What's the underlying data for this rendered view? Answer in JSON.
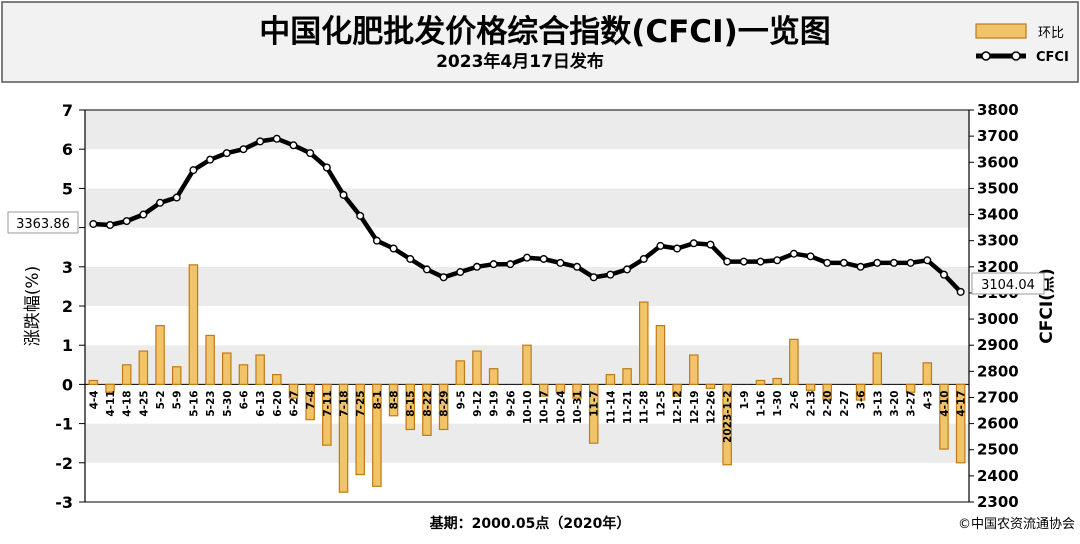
{
  "header": {
    "title": "中国化肥批发价格综合指数(CFCI)一览图",
    "subtitle": "2023年4月17日发布"
  },
  "legend": [
    {
      "label": "环比",
      "kind": "bar"
    },
    {
      "label": "CFCI",
      "kind": "line"
    }
  ],
  "footer": {
    "base_note": "基期：2000.05点（2020年）",
    "copyright": "©中国农资流通协会"
  },
  "colors": {
    "bar_fill": "#f1c46a",
    "bar_border": "#c07a14",
    "line": "#000000",
    "plot_band_a": "#ebebeb",
    "plot_band_b": "#ffffff"
  },
  "chart_data": {
    "type": "bar",
    "categories": [
      "4-4",
      "4-11",
      "4-18",
      "4-25",
      "5-2",
      "5-9",
      "5-16",
      "5-23",
      "5-30",
      "6-6",
      "6-13",
      "6-20",
      "6-27",
      "7-4",
      "7-11",
      "7-18",
      "7-25",
      "8-1",
      "8-8",
      "8-15",
      "8-22",
      "8-29",
      "9-5",
      "9-12",
      "9-19",
      "9-26",
      "10-10",
      "10-17",
      "10-24",
      "10-31",
      "11-7",
      "11-14",
      "11-21",
      "11-28",
      "12-5",
      "12-12",
      "12-19",
      "12-26",
      "2023-1-2",
      "1-9",
      "1-16",
      "1-30",
      "2-6",
      "2-13",
      "2-20",
      "2-27",
      "3-6",
      "3-13",
      "3-20",
      "3-27",
      "4-3",
      "4-10",
      "4-17"
    ],
    "series": [
      {
        "name": "环比",
        "axis": "left",
        "values": [
          0.1,
          -0.2,
          0.5,
          0.85,
          1.5,
          0.45,
          3.05,
          1.25,
          0.8,
          0.5,
          0.75,
          0.25,
          -0.35,
          -0.9,
          -1.55,
          -2.75,
          -2.3,
          -2.6,
          -0.8,
          -1.15,
          -1.3,
          -1.15,
          0.6,
          0.85,
          0.4,
          0.0,
          1.0,
          -0.3,
          -0.2,
          -0.35,
          -1.5,
          0.25,
          0.4,
          2.1,
          1.5,
          -0.3,
          0.75,
          -0.1,
          -2.05,
          0.0,
          0.1,
          0.15,
          1.15,
          -0.15,
          -0.4,
          0.0,
          -0.4,
          0.8,
          0.0,
          -0.2,
          0.55,
          -1.65,
          -2.0
        ]
      },
      {
        "name": "CFCI",
        "axis": "right",
        "values": [
          3363.86,
          3360,
          3375,
          3400,
          3445,
          3465,
          3570,
          3610,
          3635,
          3650,
          3680,
          3690,
          3665,
          3635,
          3580,
          3475,
          3395,
          3300,
          3270,
          3230,
          3190,
          3160,
          3180,
          3200,
          3210,
          3210,
          3235,
          3230,
          3215,
          3200,
          3160,
          3170,
          3190,
          3230,
          3280,
          3270,
          3290,
          3285,
          3220,
          3220,
          3220,
          3225,
          3250,
          3240,
          3215,
          3215,
          3200,
          3215,
          3215,
          3215,
          3225,
          3170,
          3104.04
        ]
      }
    ],
    "callouts": [
      "3363.86",
      "3104.04"
    ],
    "ylabel_left": "涨跌幅(%)",
    "ylabel_right": "CFCI(点)",
    "ylim_left": [
      -3,
      7
    ],
    "ylim_right": [
      2300,
      3800
    ],
    "yticks_left": [
      "-3",
      "-2",
      "-1",
      "0",
      "1",
      "2",
      "3",
      "4",
      "5",
      "6",
      "7"
    ],
    "yticks_right": [
      "2300",
      "2400",
      "2500",
      "2600",
      "2700",
      "2800",
      "2900",
      "3000",
      "3100",
      "3200",
      "3300",
      "3400",
      "3500",
      "3600",
      "3700",
      "3800"
    ],
    "grid": "horizontal bands",
    "legend_position": "top-right"
  }
}
